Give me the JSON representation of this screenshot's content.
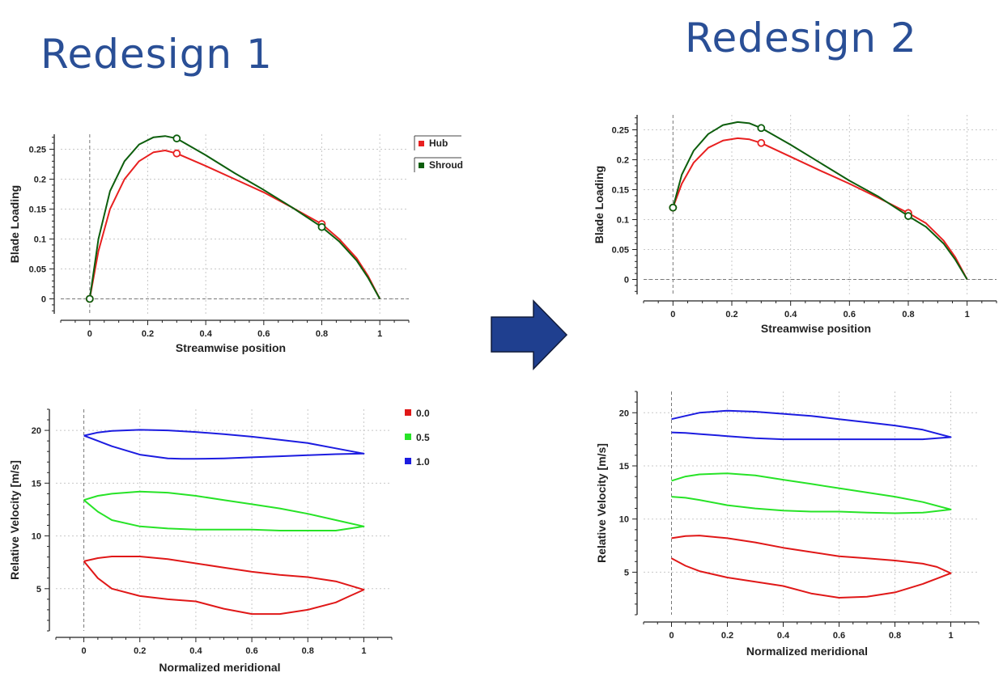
{
  "headings": {
    "left": "Redesign 1",
    "right": "Redesign 2"
  },
  "arrow_color": "#1f3f8f",
  "chart_data": [
    {
      "id": "r1-loading",
      "type": "line",
      "xlabel": "Streamwise position",
      "ylabel": "Blade Loading",
      "xlim": [
        -0.1,
        1.1
      ],
      "ylim": [
        -0.025,
        0.275
      ],
      "xticks": [
        "0",
        "0.2",
        "0.4",
        "0.6",
        "0.8",
        "1"
      ],
      "xtick_values": [
        0,
        0.2,
        0.4,
        0.6,
        0.8,
        1
      ],
      "yticks": [
        "0",
        "0.05",
        "0.1",
        "0.15",
        "0.2",
        "0.25"
      ],
      "ytick_values": [
        0,
        0.05,
        0.1,
        0.15,
        0.2,
        0.25
      ],
      "grid": true,
      "legend": "top-right",
      "series": [
        {
          "name": "Hub",
          "color": "#e82020",
          "x": [
            0,
            0.03,
            0.07,
            0.12,
            0.17,
            0.22,
            0.26,
            0.3,
            0.4,
            0.5,
            0.6,
            0.7,
            0.8,
            0.86,
            0.92,
            0.96,
            1.0
          ],
          "y": [
            0,
            0.08,
            0.15,
            0.2,
            0.23,
            0.245,
            0.248,
            0.243,
            0.222,
            0.2,
            0.178,
            0.152,
            0.125,
            0.1,
            0.068,
            0.038,
            0
          ],
          "markers_x": [
            0,
            0.3,
            0.8
          ],
          "markers_y": [
            0,
            0.243,
            0.125
          ]
        },
        {
          "name": "Shroud",
          "color": "#0d5e0d",
          "x": [
            0,
            0.03,
            0.07,
            0.12,
            0.17,
            0.22,
            0.26,
            0.3,
            0.4,
            0.5,
            0.6,
            0.7,
            0.8,
            0.86,
            0.92,
            0.96,
            1.0
          ],
          "y": [
            0,
            0.1,
            0.18,
            0.23,
            0.258,
            0.27,
            0.272,
            0.268,
            0.24,
            0.21,
            0.182,
            0.152,
            0.12,
            0.096,
            0.064,
            0.035,
            0
          ],
          "markers_x": [
            0,
            0.3,
            0.8
          ],
          "markers_y": [
            0,
            0.268,
            0.12
          ]
        }
      ]
    },
    {
      "id": "r1-velocity",
      "type": "line",
      "xlabel": "Normalized meridional",
      "ylabel": "Relative Velocity [m/s]",
      "xlim": [
        -0.1,
        1.1
      ],
      "ylim": [
        1,
        22
      ],
      "xticks": [
        "0",
        "0.2",
        "0.4",
        "0.6",
        "0.8",
        "1"
      ],
      "xtick_values": [
        0,
        0.2,
        0.4,
        0.6,
        0.8,
        1
      ],
      "yticks": [
        "5",
        "10",
        "15",
        "20"
      ],
      "ytick_values": [
        5,
        10,
        15,
        20
      ],
      "grid": true,
      "legend": "top-right",
      "series": [
        {
          "name": "0.0",
          "color": "#e01818",
          "x": [
            0,
            0.05,
            0.1,
            0.2,
            0.3,
            0.4,
            0.5,
            0.6,
            0.7,
            0.8,
            0.9,
            1.0,
            0.95,
            0.9,
            0.8,
            0.7,
            0.6,
            0.5,
            0.4,
            0.3,
            0.2,
            0.1,
            0.05,
            0
          ],
          "y": [
            7.6,
            7.9,
            8.05,
            8.05,
            7.8,
            7.4,
            7.0,
            6.6,
            6.3,
            6.1,
            5.7,
            4.9,
            4.3,
            3.7,
            3.0,
            2.6,
            2.6,
            3.1,
            3.8,
            4.0,
            4.3,
            5.0,
            6.0,
            7.6
          ]
        },
        {
          "name": "0.5",
          "color": "#27e327",
          "x": [
            0,
            0.05,
            0.1,
            0.2,
            0.3,
            0.4,
            0.5,
            0.6,
            0.7,
            0.8,
            0.9,
            1.0,
            0.9,
            0.8,
            0.7,
            0.6,
            0.5,
            0.4,
            0.3,
            0.2,
            0.1,
            0.05,
            0
          ],
          "y": [
            13.4,
            13.8,
            14.0,
            14.2,
            14.1,
            13.8,
            13.4,
            13.0,
            12.6,
            12.1,
            11.5,
            10.9,
            10.5,
            10.5,
            10.5,
            10.6,
            10.6,
            10.6,
            10.7,
            10.9,
            11.5,
            12.3,
            13.4
          ]
        },
        {
          "name": "1.0",
          "color": "#1c1ce0",
          "x": [
            0,
            0.05,
            0.1,
            0.2,
            0.3,
            0.4,
            0.5,
            0.6,
            0.7,
            0.8,
            0.9,
            1.0,
            0.9,
            0.8,
            0.7,
            0.6,
            0.5,
            0.4,
            0.35,
            0.3,
            0.2,
            0.1,
            0.05,
            0
          ],
          "y": [
            19.5,
            19.8,
            19.95,
            20.05,
            20.0,
            19.85,
            19.65,
            19.4,
            19.1,
            18.8,
            18.3,
            17.8,
            17.75,
            17.65,
            17.55,
            17.45,
            17.35,
            17.3,
            17.3,
            17.35,
            17.7,
            18.5,
            19.0,
            19.5
          ]
        }
      ]
    },
    {
      "id": "r2-loading",
      "type": "line",
      "xlabel": "Streamwise position",
      "ylabel": "Blade Loading",
      "xlim": [
        -0.1,
        1.1
      ],
      "ylim": [
        -0.025,
        0.275
      ],
      "xticks": [
        "0",
        "0.2",
        "0.4",
        "0.6",
        "0.8",
        "1"
      ],
      "xtick_values": [
        0,
        0.2,
        0.4,
        0.6,
        0.8,
        1
      ],
      "yticks": [
        "0",
        "0.05",
        "0.1",
        "0.15",
        "0.2",
        "0.25"
      ],
      "ytick_values": [
        0,
        0.05,
        0.1,
        0.15,
        0.2,
        0.25
      ],
      "grid": true,
      "legend": "none",
      "series": [
        {
          "name": "",
          "color": "#e82020",
          "x": [
            0,
            0.03,
            0.07,
            0.12,
            0.17,
            0.22,
            0.26,
            0.3,
            0.4,
            0.5,
            0.6,
            0.7,
            0.8,
            0.86,
            0.92,
            0.96,
            1.0
          ],
          "y": [
            0.12,
            0.16,
            0.195,
            0.22,
            0.232,
            0.236,
            0.234,
            0.228,
            0.205,
            0.182,
            0.16,
            0.136,
            0.111,
            0.094,
            0.065,
            0.037,
            0
          ],
          "markers_x": [
            0,
            0.3,
            0.8
          ],
          "markers_y": [
            0.12,
            0.228,
            0.111
          ]
        },
        {
          "name": "",
          "color": "#0d5e0d",
          "x": [
            0,
            0.03,
            0.07,
            0.12,
            0.17,
            0.22,
            0.26,
            0.3,
            0.4,
            0.5,
            0.6,
            0.7,
            0.8,
            0.86,
            0.92,
            0.96,
            1.0
          ],
          "y": [
            0.12,
            0.175,
            0.215,
            0.243,
            0.258,
            0.263,
            0.261,
            0.253,
            0.225,
            0.195,
            0.165,
            0.138,
            0.106,
            0.088,
            0.06,
            0.033,
            0
          ],
          "markers_x": [
            0,
            0.3,
            0.8
          ],
          "markers_y": [
            0.12,
            0.253,
            0.106
          ]
        }
      ]
    },
    {
      "id": "r2-velocity",
      "type": "line",
      "xlabel": "Normalized meridional",
      "ylabel": "Relative Velocity [m/s]",
      "xlim": [
        -0.1,
        1.1
      ],
      "ylim": [
        1,
        22
      ],
      "xticks": [
        "0",
        "0.2",
        "0.4",
        "0.6",
        "0.8",
        "1"
      ],
      "xtick_values": [
        0,
        0.2,
        0.4,
        0.6,
        0.8,
        1
      ],
      "yticks": [
        "5",
        "10",
        "15",
        "20"
      ],
      "ytick_values": [
        5,
        10,
        15,
        20
      ],
      "grid": true,
      "legend": "none",
      "series": [
        {
          "name": "",
          "color": "#e01818",
          "x": [
            0,
            0.05,
            0.1,
            0.2,
            0.3,
            0.4,
            0.5,
            0.6,
            0.7,
            0.8,
            0.9,
            0.95,
            1.0,
            0.95,
            0.9,
            0.8,
            0.7,
            0.6,
            0.5,
            0.4,
            0.3,
            0.2,
            0.1,
            0.05,
            0
          ],
          "y": [
            8.2,
            8.4,
            8.45,
            8.2,
            7.8,
            7.3,
            6.9,
            6.5,
            6.3,
            6.1,
            5.8,
            5.5,
            4.9,
            4.4,
            3.9,
            3.1,
            2.7,
            2.6,
            3.0,
            3.7,
            4.1,
            4.5,
            5.1,
            5.6,
            6.3
          ]
        },
        {
          "name": "",
          "color": "#27e327",
          "x": [
            0,
            0.05,
            0.1,
            0.2,
            0.3,
            0.4,
            0.5,
            0.6,
            0.7,
            0.8,
            0.9,
            1.0,
            0.9,
            0.8,
            0.7,
            0.6,
            0.5,
            0.4,
            0.3,
            0.2,
            0.1,
            0.05,
            0
          ],
          "y": [
            13.6,
            14.0,
            14.2,
            14.3,
            14.1,
            13.7,
            13.3,
            12.9,
            12.5,
            12.1,
            11.6,
            10.9,
            10.6,
            10.55,
            10.6,
            10.7,
            10.7,
            10.8,
            11.0,
            11.3,
            11.8,
            12.0,
            12.1
          ]
        },
        {
          "name": "",
          "color": "#1c1ce0",
          "x": [
            0,
            0.05,
            0.1,
            0.2,
            0.3,
            0.4,
            0.5,
            0.6,
            0.7,
            0.8,
            0.9,
            1.0,
            0.9,
            0.8,
            0.7,
            0.6,
            0.5,
            0.4,
            0.3,
            0.2,
            0.1,
            0.05,
            0
          ],
          "y": [
            19.4,
            19.7,
            20.0,
            20.2,
            20.1,
            19.9,
            19.7,
            19.4,
            19.1,
            18.8,
            18.4,
            17.7,
            17.5,
            17.5,
            17.5,
            17.5,
            17.5,
            17.5,
            17.6,
            17.8,
            18.0,
            18.1,
            18.15
          ]
        }
      ]
    }
  ]
}
